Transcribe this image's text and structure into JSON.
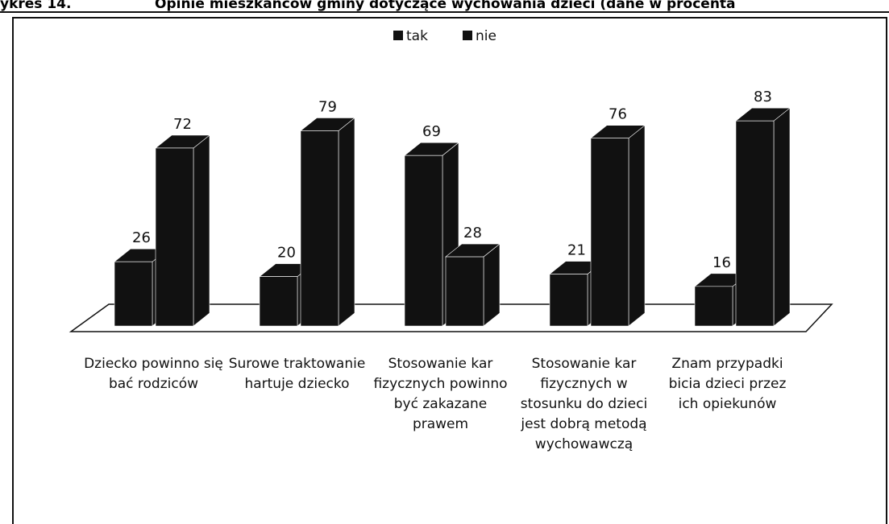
{
  "chart_data": {
    "type": "bar3d",
    "figure_label": "ykres 14.",
    "title": "Opinie mieszkańców gminy dotyczące wychowania dzieci (dane w procenta",
    "categories": [
      "Dziecko powinno się bać rodziców",
      "Surowe traktowanie hartuje dziecko",
      "Stosowanie kar fizycznych powinno być zakazane prawem",
      "Stosowanie kar fizycznych w stosunku do dzieci jest dobrą metodą wychowawczą",
      "Znam przypadki bicia dzieci przez ich opiekunów"
    ],
    "series": [
      {
        "name": "tak",
        "color": "#111111",
        "values": [
          26,
          20,
          69,
          21,
          16
        ]
      },
      {
        "name": "nie",
        "color": "#111111",
        "values": [
          72,
          79,
          28,
          76,
          83
        ]
      }
    ],
    "legend": "top"
  }
}
